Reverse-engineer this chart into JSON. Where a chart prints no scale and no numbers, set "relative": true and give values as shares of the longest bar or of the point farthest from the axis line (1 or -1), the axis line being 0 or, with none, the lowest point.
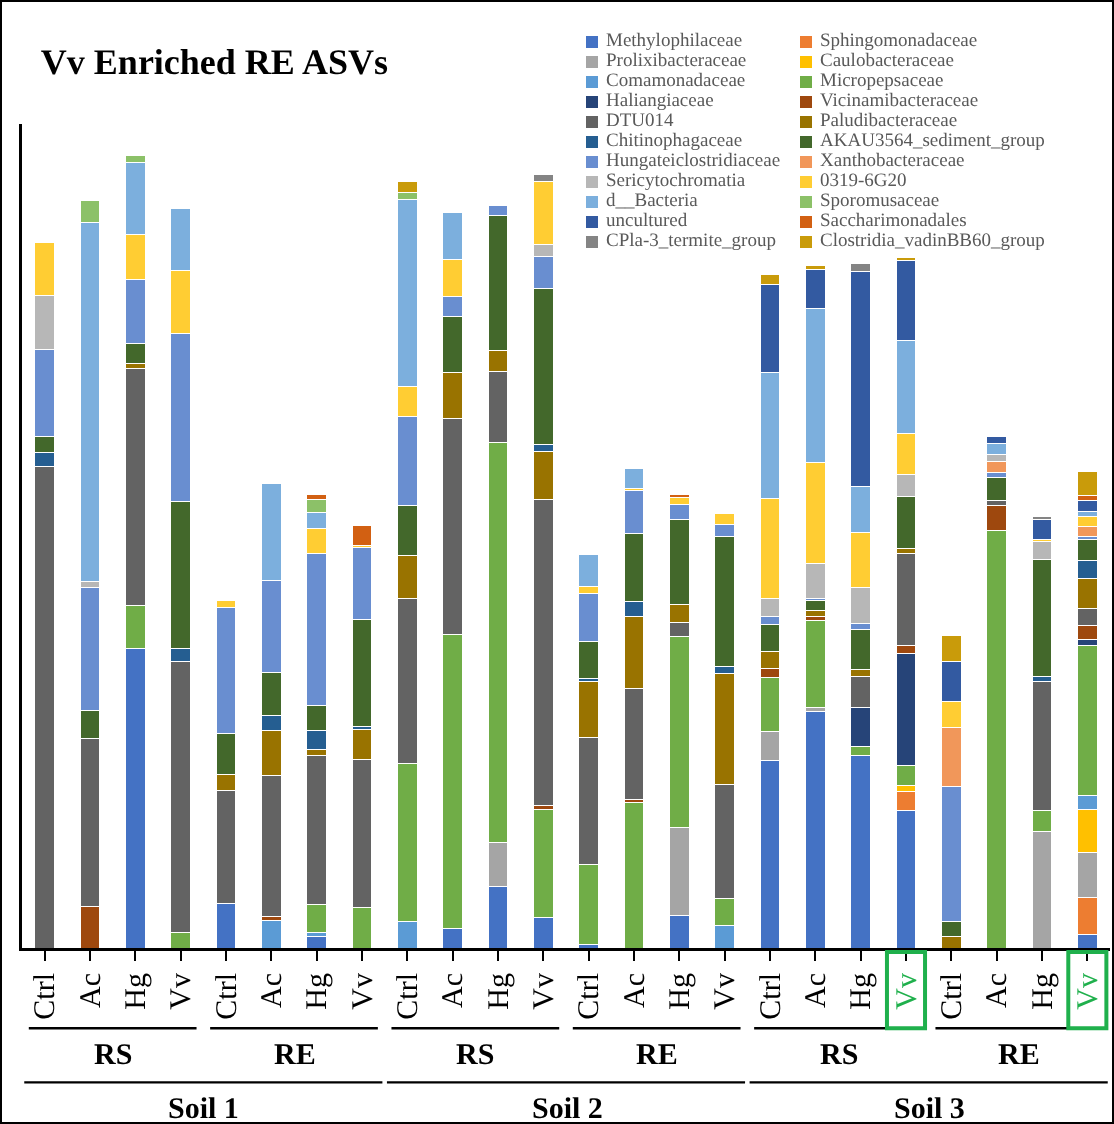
{
  "chart_data": {
    "type": "bar",
    "title": "Vv Enriched RE ASVs",
    "stacked": true,
    "relative": true,
    "legend": "top right",
    "categories": [
      "Ctrl",
      "Ac",
      "Hg",
      "Vv",
      "Ctrl",
      "Ac",
      "Hg",
      "Vv",
      "Ctrl",
      "Ac",
      "Hg",
      "Vv",
      "Ctrl",
      "Ac",
      "Hg",
      "Vv",
      "Ctrl",
      "Ac",
      "Hg",
      "Vv",
      "Ctrl",
      "Ac",
      "Hg",
      "Vv"
    ],
    "annotations": [
      "RS",
      "RE",
      "RS",
      "RE",
      "RS",
      "RE",
      "Soil 1",
      "Soil 2",
      "Soil 3"
    ],
    "series": [
      {
        "name": "Methylophilaceae",
        "color": "#4472c4",
        "values": [
          null,
          null,
          0.378,
          null,
          0.056,
          null,
          0.015,
          null,
          null,
          0.025,
          0.078,
          0.038,
          0.004,
          null,
          0.041,
          null,
          0.237,
          0.299,
          0.243,
          0.174,
          null,
          null,
          null,
          0.017
        ]
      },
      {
        "name": "Sphingomonadaceae",
        "color": "#ed7d31",
        "values": [
          null,
          null,
          null,
          null,
          null,
          null,
          null,
          null,
          null,
          null,
          null,
          null,
          null,
          null,
          null,
          null,
          null,
          null,
          null,
          0.023,
          null,
          null,
          null,
          0.047
        ]
      },
      {
        "name": "Prolixibacteraceae",
        "color": "#a5a5a5",
        "values": [
          null,
          null,
          null,
          null,
          null,
          null,
          null,
          null,
          null,
          null,
          0.055,
          null,
          null,
          null,
          0.111,
          null,
          0.036,
          0.004,
          null,
          null,
          null,
          null,
          0.147,
          0.056
        ]
      },
      {
        "name": "Caulobacteraceae",
        "color": "#ffc000",
        "values": [
          null,
          null,
          null,
          null,
          null,
          null,
          null,
          null,
          null,
          null,
          null,
          null,
          null,
          null,
          null,
          null,
          null,
          null,
          null,
          0.008,
          null,
          null,
          null,
          0.055
        ]
      },
      {
        "name": "Comamonadaceae",
        "color": "#5b9bd5",
        "values": [
          null,
          null,
          null,
          null,
          null,
          0.035,
          0.005,
          null,
          0.034,
          null,
          null,
          null,
          null,
          null,
          null,
          0.028,
          null,
          null,
          null,
          null,
          null,
          null,
          null,
          0.018
        ]
      },
      {
        "name": "Micropepsaceae",
        "color": "#70ad47",
        "values": [
          null,
          null,
          0.054,
          0.019,
          null,
          null,
          0.035,
          0.051,
          0.199,
          0.371,
          0.505,
          0.137,
          0.101,
          0.184,
          0.241,
          0.035,
          0.069,
          0.11,
          0.011,
          0.025,
          null,
          0.527,
          0.027,
          0.189
        ]
      },
      {
        "name": "Haliangiaceae",
        "color": "#264478",
        "values": [
          null,
          null,
          null,
          null,
          null,
          null,
          null,
          null,
          null,
          null,
          null,
          null,
          null,
          null,
          null,
          null,
          null,
          null,
          0.049,
          0.142,
          null,
          null,
          null,
          0.008
        ]
      },
      {
        "name": "Vicinamibacteraceae",
        "color": "#9e480e",
        "values": [
          null,
          0.053,
          null,
          null,
          null,
          0.005,
          null,
          null,
          null,
          null,
          null,
          0.005,
          null,
          0.004,
          null,
          null,
          0.011,
          0.006,
          null,
          0.01,
          null,
          0.031,
          null,
          0.017
        ]
      },
      {
        "name": "DTU014",
        "color": "#636363",
        "values": [
          0.608,
          0.211,
          0.3,
          0.342,
          0.143,
          0.178,
          0.188,
          0.187,
          0.208,
          0.272,
          0.09,
          0.386,
          0.161,
          0.139,
          0.018,
          0.144,
          null,
          null,
          0.04,
          0.116,
          null,
          0.007,
          0.162,
          0.021
        ]
      },
      {
        "name": "Paludibacteraceae",
        "color": "#997300",
        "values": [
          null,
          null,
          0.006,
          null,
          0.02,
          0.056,
          0.008,
          0.038,
          0.055,
          0.059,
          0.026,
          0.061,
          0.071,
          0.092,
          0.023,
          0.14,
          0.021,
          0.007,
          0.008,
          0.006,
          0.015,
          null,
          null,
          0.038
        ]
      },
      {
        "name": "Chitinophagaceae",
        "color": "#255e91",
        "values": [
          0.018,
          null,
          null,
          0.017,
          null,
          0.019,
          0.024,
          0.003,
          null,
          null,
          null,
          0.009,
          0.003,
          0.018,
          null,
          0.008,
          null,
          null,
          null,
          null,
          null,
          null,
          0.007,
          0.023
        ]
      },
      {
        "name": "AKAU3564_sediment_group",
        "color": "#43682b",
        "values": [
          0.02,
          0.036,
          0.025,
          0.186,
          0.052,
          0.055,
          0.031,
          0.136,
          0.062,
          0.07,
          0.17,
          0.196,
          0.047,
          0.086,
          0.107,
          0.164,
          0.034,
          0.012,
          0.051,
          0.066,
          0.018,
          0.029,
          0.147,
          0.026
        ]
      },
      {
        "name": "Hungateiclostridiaceae",
        "color": "#698ed0",
        "values": [
          0.11,
          0.155,
          0.081,
          0.211,
          0.159,
          0.116,
          0.192,
          0.09,
          0.113,
          0.025,
          0.013,
          0.041,
          0.061,
          0.054,
          0.019,
          0.016,
          0.01,
          0.003,
          0.007,
          null,
          0.171,
          0.006,
          null,
          0.005
        ]
      },
      {
        "name": "Xanthobacteraceae",
        "color": "#f1975a",
        "values": [
          null,
          null,
          null,
          null,
          null,
          null,
          null,
          null,
          null,
          null,
          null,
          null,
          null,
          null,
          null,
          null,
          null,
          null,
          null,
          null,
          0.074,
          0.014,
          null,
          0.012
        ]
      },
      {
        "name": "Sericytochromatia",
        "color": "#b7b7b7",
        "values": [
          0.067,
          0.007,
          null,
          null,
          null,
          null,
          null,
          null,
          null,
          null,
          null,
          0.015,
          null,
          null,
          null,
          null,
          0.023,
          0.044,
          0.046,
          0.028,
          null,
          0.009,
          0.023,
          null
        ]
      },
      {
        "name": "0319-6G20",
        "color": "#ffcd33",
        "values": [
          0.068,
          null,
          0.057,
          0.08,
          0.008,
          null,
          0.032,
          0.003,
          0.038,
          0.047,
          null,
          0.08,
          0.008,
          0.003,
          0.009,
          0.013,
          0.126,
          0.128,
          0.07,
          0.051,
          0.033,
          null,
          0.003,
          0.012
        ]
      },
      {
        "name": "d__Bacteria",
        "color": "#7cafdd",
        "values": [
          null,
          0.454,
          0.09,
          0.078,
          null,
          0.122,
          0.02,
          null,
          0.236,
          0.059,
          null,
          null,
          0.041,
          0.025,
          null,
          null,
          0.159,
          0.194,
          0.058,
          0.118,
          null,
          0.014,
          null,
          0.007
        ]
      },
      {
        "name": "Sporomusaceae",
        "color": "#8cc168",
        "values": [
          null,
          0.027,
          0.009,
          null,
          null,
          null,
          0.016,
          null,
          0.009,
          null,
          null,
          null,
          null,
          null,
          null,
          null,
          null,
          null,
          null,
          null,
          null,
          null,
          null,
          null
        ]
      },
      {
        "name": "uncultured",
        "color": "#335aa1",
        "values": [
          null,
          null,
          null,
          null,
          null,
          null,
          null,
          null,
          null,
          null,
          null,
          null,
          null,
          null,
          null,
          null,
          0.111,
          0.049,
          0.271,
          0.101,
          0.05,
          0.008,
          0.025,
          0.014
        ]
      },
      {
        "name": "Saccharimonadales",
        "color": "#d26012",
        "values": [
          null,
          null,
          null,
          null,
          null,
          null,
          0.006,
          0.025,
          null,
          null,
          null,
          null,
          null,
          null,
          0.004,
          null,
          null,
          null,
          null,
          null,
          null,
          null,
          null,
          0.006
        ]
      },
      {
        "name": "CPla-3_termite_group",
        "color": "#848484",
        "values": [
          null,
          null,
          null,
          null,
          null,
          null,
          null,
          null,
          null,
          null,
          null,
          0.008,
          null,
          null,
          null,
          null,
          null,
          null,
          0.01,
          null,
          null,
          null,
          0.003,
          null
        ]
      },
      {
        "name": "Clostridia_vadinBB60_group",
        "color": "#c99b0a",
        "values": [
          null,
          null,
          null,
          null,
          null,
          null,
          null,
          null,
          0.013,
          null,
          null,
          null,
          null,
          null,
          null,
          null,
          0.013,
          0.005,
          null,
          0.003,
          0.033,
          null,
          null,
          0.03
        ]
      }
    ]
  }
}
